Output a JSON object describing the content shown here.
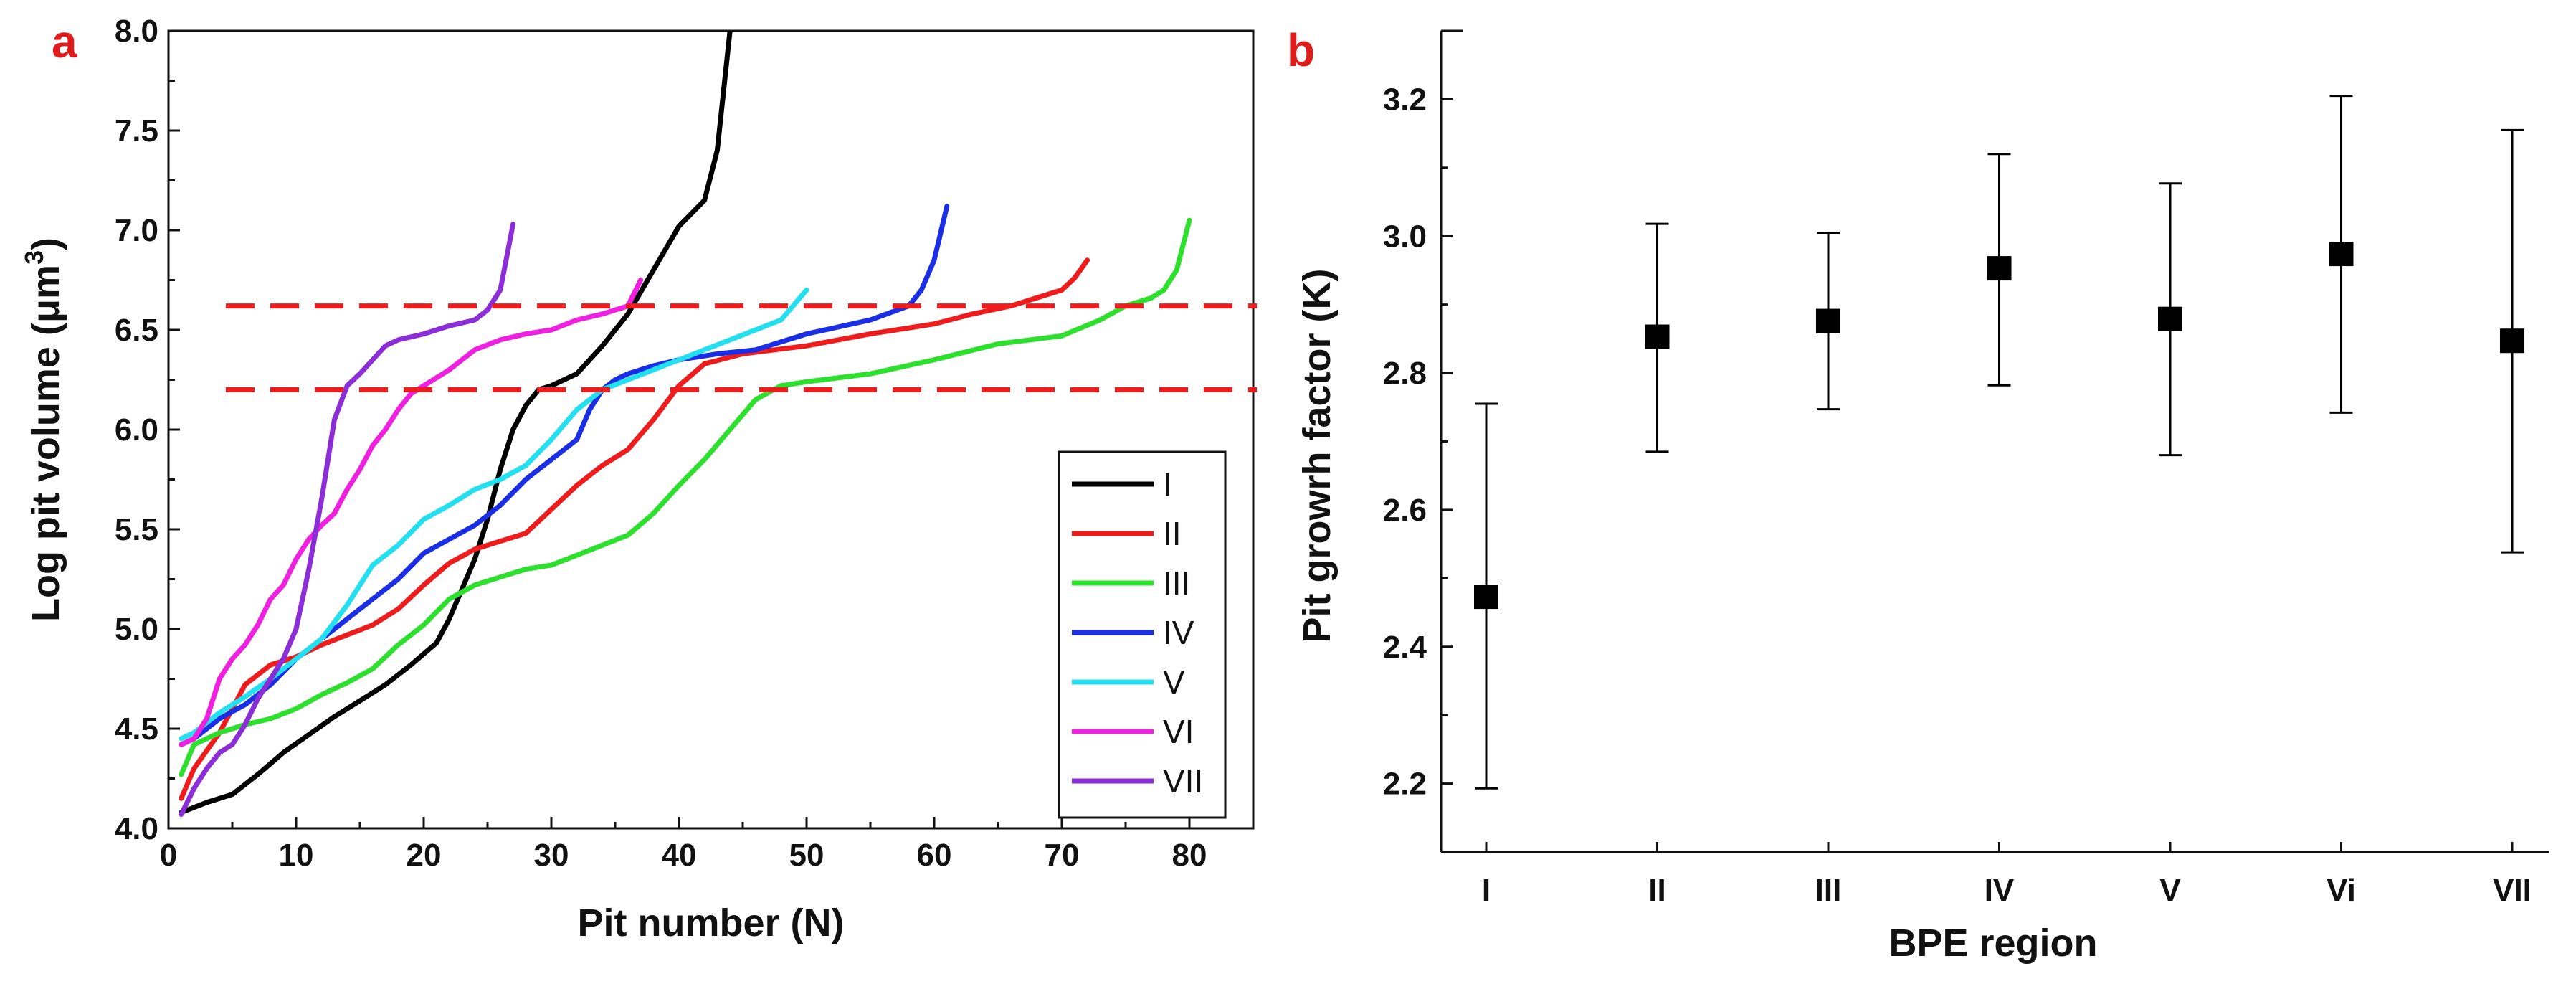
{
  "colors": {
    "panel_letter": "#e01b1b",
    "axis": "#111111",
    "threshold": "#ee1c1c",
    "marker": "#000000"
  },
  "chart_data": [
    {
      "panel": "a",
      "type": "line",
      "title": "",
      "xlabel": "Pit number (N)",
      "ylabel_main": "Log pit volume (",
      "ylabel_unit": "μm",
      "ylabel_sup": "3",
      "ylabel_close": ")",
      "xlim": [
        0,
        85
      ],
      "ylim": [
        4.0,
        8.0
      ],
      "xticks": [
        0,
        10,
        20,
        30,
        40,
        50,
        60,
        70,
        80
      ],
      "yticks": [
        4.0,
        4.5,
        5.0,
        5.5,
        6.0,
        6.5,
        7.0,
        7.5,
        8.0
      ],
      "ytick_labels": [
        "4.0",
        "4.5",
        "5.0",
        "5.5",
        "6.0",
        "6.5",
        "7.0",
        "7.5",
        "8.0"
      ],
      "legend_position": "bottom-right",
      "hlines": [
        {
          "y": 6.62,
          "style": "dashed",
          "color": "#ee1c1c"
        },
        {
          "y": 6.2,
          "style": "dashed",
          "color": "#ee1c1c"
        }
      ],
      "series": [
        {
          "name": "I",
          "color": "#000000",
          "x": [
            1,
            3,
            5,
            7,
            9,
            11,
            13,
            15,
            17,
            19,
            21,
            22,
            23,
            24,
            25,
            26,
            27,
            28,
            29,
            30,
            32,
            34,
            36,
            38,
            40,
            42,
            43,
            43.5,
            44
          ],
          "y": [
            4.08,
            4.13,
            4.17,
            4.27,
            4.38,
            4.47,
            4.56,
            4.64,
            4.72,
            4.82,
            4.93,
            5.05,
            5.2,
            5.35,
            5.55,
            5.8,
            6.0,
            6.12,
            6.2,
            6.22,
            6.28,
            6.42,
            6.58,
            6.8,
            7.02,
            7.15,
            7.4,
            7.7,
            8.0
          ]
        },
        {
          "name": "II",
          "color": "#ee1c1c",
          "x": [
            1,
            2,
            4,
            6,
            8,
            10,
            12,
            14,
            16,
            18,
            20,
            22,
            24,
            26,
            28,
            30,
            32,
            34,
            36,
            38,
            40,
            42,
            45,
            50,
            55,
            60,
            63,
            66,
            68,
            70,
            71,
            72
          ],
          "y": [
            4.15,
            4.3,
            4.48,
            4.72,
            4.82,
            4.86,
            4.92,
            4.97,
            5.02,
            5.1,
            5.22,
            5.33,
            5.4,
            5.44,
            5.48,
            5.6,
            5.72,
            5.82,
            5.9,
            6.05,
            6.22,
            6.33,
            6.38,
            6.42,
            6.48,
            6.53,
            6.58,
            6.62,
            6.66,
            6.7,
            6.76,
            6.85
          ]
        },
        {
          "name": "III",
          "color": "#2ee02e",
          "x": [
            1,
            2,
            4,
            6,
            8,
            10,
            12,
            14,
            16,
            18,
            20,
            22,
            24,
            26,
            28,
            30,
            32,
            34,
            36,
            38,
            40,
            42,
            44,
            46,
            48,
            50,
            55,
            60,
            65,
            70,
            73,
            75,
            77,
            78,
            79,
            80
          ],
          "y": [
            4.27,
            4.42,
            4.48,
            4.52,
            4.55,
            4.6,
            4.67,
            4.73,
            4.8,
            4.92,
            5.02,
            5.15,
            5.22,
            5.26,
            5.3,
            5.32,
            5.37,
            5.42,
            5.47,
            5.58,
            5.72,
            5.85,
            6.0,
            6.15,
            6.22,
            6.24,
            6.28,
            6.35,
            6.43,
            6.47,
            6.55,
            6.62,
            6.66,
            6.7,
            6.8,
            7.05
          ]
        },
        {
          "name": "IV",
          "color": "#1a2ee6",
          "x": [
            1,
            2,
            4,
            6,
            8,
            10,
            12,
            14,
            16,
            18,
            20,
            22,
            24,
            26,
            28,
            30,
            32,
            33,
            34,
            35,
            36,
            38,
            40,
            43,
            46,
            50,
            55,
            58,
            59,
            60,
            61
          ],
          "y": [
            4.42,
            4.45,
            4.55,
            4.62,
            4.72,
            4.85,
            4.95,
            5.05,
            5.15,
            5.25,
            5.38,
            5.45,
            5.52,
            5.62,
            5.75,
            5.85,
            5.95,
            6.1,
            6.2,
            6.25,
            6.28,
            6.32,
            6.35,
            6.38,
            6.4,
            6.48,
            6.55,
            6.62,
            6.7,
            6.85,
            7.12
          ]
        },
        {
          "name": "V",
          "color": "#22e0f0",
          "x": [
            1,
            2,
            4,
            6,
            8,
            10,
            12,
            14,
            16,
            18,
            20,
            22,
            24,
            26,
            28,
            30,
            32,
            34,
            36,
            38,
            40,
            42,
            44,
            46,
            48,
            50
          ],
          "y": [
            4.45,
            4.48,
            4.58,
            4.66,
            4.75,
            4.85,
            4.95,
            5.12,
            5.32,
            5.42,
            5.55,
            5.62,
            5.7,
            5.75,
            5.82,
            5.95,
            6.1,
            6.2,
            6.25,
            6.3,
            6.35,
            6.4,
            6.45,
            6.5,
            6.55,
            6.7
          ]
        },
        {
          "name": "VI",
          "color": "#f020e0",
          "x": [
            1,
            2,
            3,
            4,
            5,
            6,
            7,
            8,
            9,
            10,
            11,
            12,
            13,
            14,
            15,
            16,
            17,
            18,
            19,
            20,
            22,
            24,
            26,
            28,
            30,
            32,
            34,
            36,
            37
          ],
          "y": [
            4.42,
            4.45,
            4.55,
            4.75,
            4.85,
            4.92,
            5.02,
            5.15,
            5.22,
            5.35,
            5.45,
            5.52,
            5.58,
            5.7,
            5.8,
            5.92,
            6.0,
            6.1,
            6.18,
            6.22,
            6.3,
            6.4,
            6.45,
            6.48,
            6.5,
            6.55,
            6.58,
            6.62,
            6.75
          ]
        },
        {
          "name": "VII",
          "color": "#8c2ed8",
          "x": [
            1,
            2,
            3,
            4,
            5,
            6,
            7,
            8,
            9,
            10,
            11,
            12,
            13,
            14,
            15,
            16,
            17,
            18,
            20,
            22,
            24,
            25,
            26,
            27
          ],
          "y": [
            4.07,
            4.2,
            4.3,
            4.38,
            4.42,
            4.52,
            4.65,
            4.75,
            4.85,
            5.0,
            5.3,
            5.65,
            6.05,
            6.22,
            6.28,
            6.35,
            6.42,
            6.45,
            6.48,
            6.52,
            6.55,
            6.6,
            6.7,
            7.03
          ]
        }
      ]
    },
    {
      "panel": "b",
      "type": "scatter",
      "title": "",
      "xlabel": "BPE region",
      "ylabel": "Pit growrh factor (K)",
      "ylim": [
        2.1,
        3.3
      ],
      "yticks": [
        2.2,
        2.4,
        2.6,
        2.8,
        3.0,
        3.2
      ],
      "ytick_labels": [
        "2.2",
        "2.4",
        "2.6",
        "2.8",
        "3.0",
        "3.2"
      ],
      "categories": [
        "I",
        "II",
        "III",
        "IV",
        "V",
        "Vi",
        "VII"
      ],
      "values": [
        2.473,
        2.853,
        2.876,
        2.953,
        2.879,
        2.974,
        2.847
      ],
      "error_low": [
        2.193,
        2.685,
        2.747,
        2.782,
        2.68,
        2.742,
        2.538
      ],
      "error_high": [
        2.755,
        3.018,
        3.005,
        3.12,
        3.077,
        3.205,
        3.155
      ]
    }
  ]
}
